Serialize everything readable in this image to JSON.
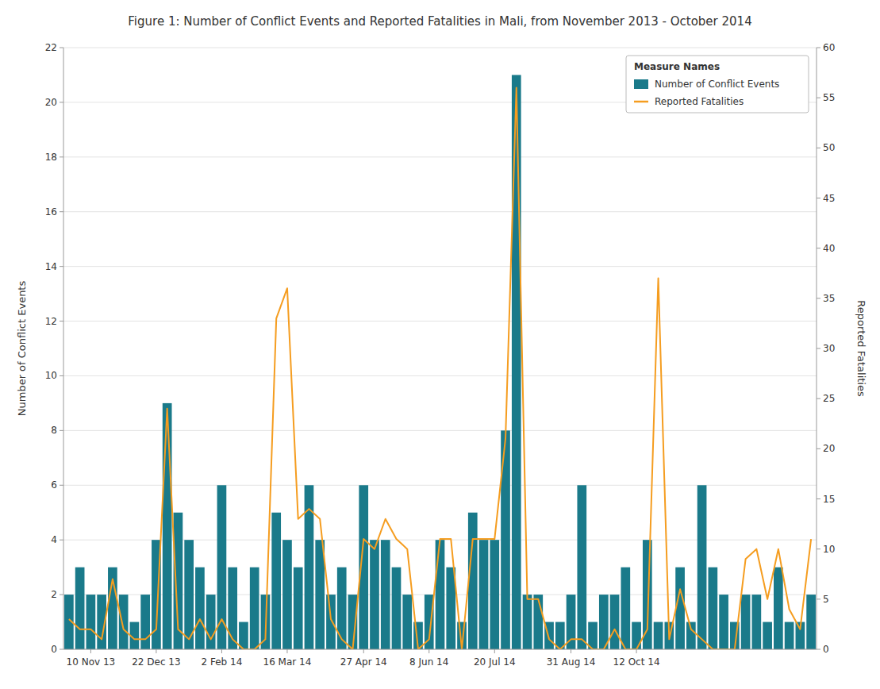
{
  "chart_data": {
    "type": "bar",
    "title": "Figure 1: Number of Conflict Events and Reported Fatalities in Mali, from November 2013 - October 2014",
    "ylabel": "Number of Conflict Events",
    "y2label": "Reported Fatalities",
    "categories": [
      null,
      null,
      "10 Nov 13",
      null,
      null,
      null,
      null,
      null,
      "22 Dec 13",
      null,
      null,
      null,
      null,
      null,
      "2 Feb 14",
      null,
      null,
      null,
      null,
      null,
      "16 Mar 14",
      null,
      null,
      null,
      null,
      null,
      null,
      "27 Apr 14",
      null,
      null,
      null,
      null,
      null,
      "8 Jun 14",
      null,
      null,
      null,
      null,
      null,
      "20 Jul 14",
      null,
      null,
      null,
      null,
      null,
      null,
      "31 Aug 14",
      null,
      null,
      null,
      null,
      null,
      "12 Oct 14",
      null,
      null,
      null,
      null,
      null,
      null,
      null,
      null,
      null,
      null,
      null,
      null,
      null,
      null,
      null,
      null
    ],
    "series": [
      {
        "name": "Number of Conflict Events",
        "type": "bar",
        "color": "#1a7a8a",
        "values": [
          2,
          3,
          2,
          2,
          3,
          2,
          1,
          2,
          4,
          9,
          5,
          4,
          3,
          2,
          6,
          3,
          1,
          3,
          2,
          5,
          4,
          3,
          6,
          4,
          2,
          3,
          2,
          6,
          4,
          4,
          3,
          2,
          1,
          2,
          4,
          3,
          1,
          5,
          4,
          4,
          8,
          21,
          2,
          2,
          1,
          1,
          2,
          6,
          1,
          2,
          2,
          3,
          1,
          4,
          1,
          1,
          3,
          1,
          6,
          3,
          2,
          1,
          2,
          2,
          1,
          3,
          1,
          1,
          2
        ]
      },
      {
        "name": "Reported Fatalities",
        "type": "line",
        "axis": "y2",
        "color": "#f59d20",
        "values": [
          3,
          2,
          2,
          1,
          7,
          2,
          1,
          1,
          2,
          24,
          2,
          1,
          3,
          1,
          3,
          1,
          0,
          0,
          1,
          33,
          36,
          13,
          14,
          13,
          3,
          1,
          0,
          11,
          10,
          13,
          11,
          10,
          0,
          1,
          11,
          11,
          0,
          11,
          11,
          11,
          21,
          56,
          5,
          5,
          1,
          0,
          1,
          1,
          0,
          0,
          2,
          0,
          0,
          2,
          37,
          1,
          6,
          2,
          1,
          0,
          0,
          0,
          9,
          10,
          5,
          10,
          4,
          2,
          11
        ]
      }
    ],
    "ylim": [
      0,
      22
    ],
    "yticks": [
      0,
      2,
      4,
      6,
      8,
      10,
      12,
      14,
      16,
      18,
      20,
      22
    ],
    "y2lim": [
      0,
      60
    ],
    "y2ticks": [
      0,
      5,
      10,
      15,
      20,
      25,
      30,
      35,
      40,
      45,
      50,
      55,
      60
    ],
    "grid": true,
    "legend": "upper right",
    "legend_title": "Measure Names"
  }
}
